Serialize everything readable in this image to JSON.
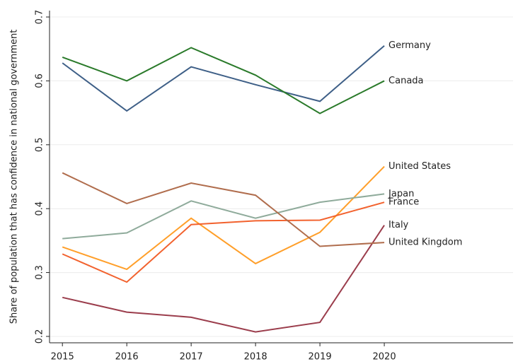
{
  "chart_data": {
    "type": "line",
    "y_label": "Share of population that has confidence in national government",
    "x": [
      2015,
      2016,
      2017,
      2018,
      2019,
      2020
    ],
    "xlim": [
      2014.8,
      2022
    ],
    "xticks": [
      2015,
      2016,
      2017,
      2018,
      2019,
      2020
    ],
    "ylim": [
      0.19,
      0.71
    ],
    "yticks": [
      0.2,
      0.3,
      0.4,
      0.5,
      0.6,
      0.7
    ],
    "grid": true,
    "series": [
      {
        "name": "Germany",
        "color": "#3e5f87",
        "values": [
          0.628,
          0.553,
          0.622,
          0.594,
          0.568,
          0.655
        ]
      },
      {
        "name": "Canada",
        "color": "#2a7a2a",
        "values": [
          0.637,
          0.6,
          0.652,
          0.609,
          0.549,
          0.6
        ]
      },
      {
        "name": "United States",
        "color": "#ff9f2a",
        "values": [
          0.34,
          0.305,
          0.385,
          0.314,
          0.363,
          0.466
        ]
      },
      {
        "name": "Japan",
        "color": "#8fab9b",
        "values": [
          0.353,
          0.362,
          0.412,
          0.385,
          0.41,
          0.423
        ]
      },
      {
        "name": "France",
        "color": "#f2622e",
        "values": [
          0.329,
          0.285,
          0.375,
          0.381,
          0.382,
          0.41
        ]
      },
      {
        "name": "Italy",
        "color": "#9b3d4c",
        "values": [
          0.261,
          0.238,
          0.23,
          0.207,
          0.222,
          0.374
        ]
      },
      {
        "name": "United Kingdom",
        "color": "#b06d4d",
        "values": [
          0.456,
          0.408,
          0.44,
          0.421,
          0.341,
          0.347
        ]
      }
    ]
  }
}
